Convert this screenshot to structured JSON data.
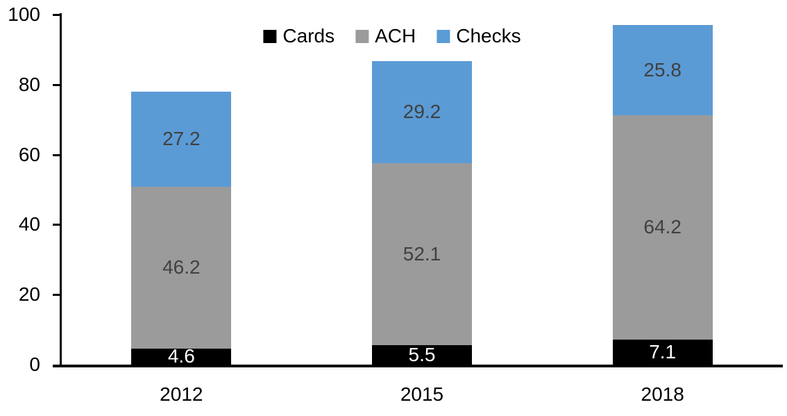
{
  "chart_data": {
    "type": "bar",
    "stacked": true,
    "title": "",
    "xlabel": "",
    "ylabel": "",
    "categories": [
      "2012",
      "2015",
      "2018"
    ],
    "series": [
      {
        "name": "Cards",
        "color": "#000000",
        "label_color": "#ffffff",
        "values": [
          4.6,
          5.5,
          7.1
        ]
      },
      {
        "name": "ACH",
        "color": "#9b9b9b",
        "label_color": "#404040",
        "values": [
          46.2,
          52.1,
          64.2
        ]
      },
      {
        "name": "Checks",
        "color": "#5b9bd5",
        "label_color": "#404040",
        "values": [
          27.2,
          29.2,
          25.8
        ]
      }
    ],
    "totals": [
      78.0,
      86.8,
      97.1
    ],
    "ylim": [
      0,
      100
    ],
    "yticks": [
      0,
      20,
      40,
      60,
      80,
      100
    ],
    "grid": false,
    "legend_position": "top-center",
    "axis_color": "#000000"
  }
}
